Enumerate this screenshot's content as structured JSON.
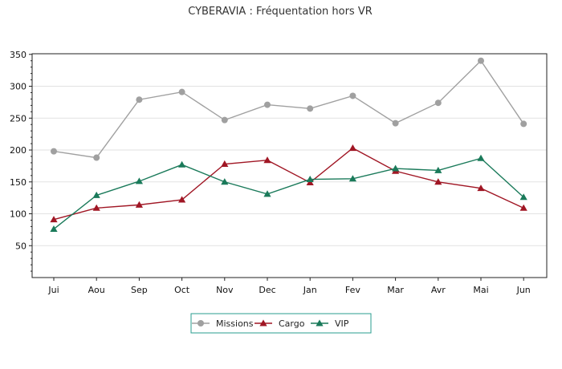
{
  "chart_data": {
    "type": "line",
    "title": "CYBERAVIA : Fréquentation hors VR",
    "xlabel": "",
    "ylabel": "",
    "categories": [
      "Jui",
      "Aou",
      "Sep",
      "Oct",
      "Nov",
      "Dec",
      "Jan",
      "Fev",
      "Mar",
      "Avr",
      "Mai",
      "Jun"
    ],
    "ylim": [
      0,
      350
    ],
    "yticks": [
      50,
      100,
      150,
      200,
      250,
      300,
      350
    ],
    "grid": true,
    "legend_position": "bottom-center",
    "series": [
      {
        "name": "Missions",
        "color": "#a0a0a0",
        "marker": "circle",
        "values": [
          198,
          188,
          279,
          291,
          247,
          271,
          265,
          285,
          242,
          274,
          340,
          241
        ]
      },
      {
        "name": "Cargo",
        "color": "#a01624",
        "marker": "triangle",
        "values": [
          91,
          109,
          114,
          122,
          178,
          184,
          149,
          203,
          167,
          150,
          140,
          109
        ]
      },
      {
        "name": "VIP",
        "color": "#1a7a5a",
        "marker": "triangle",
        "values": [
          76,
          129,
          151,
          177,
          150,
          131,
          154,
          155,
          171,
          168,
          187,
          126
        ]
      }
    ]
  },
  "legend": {
    "border_color": "#2a9d8f"
  }
}
